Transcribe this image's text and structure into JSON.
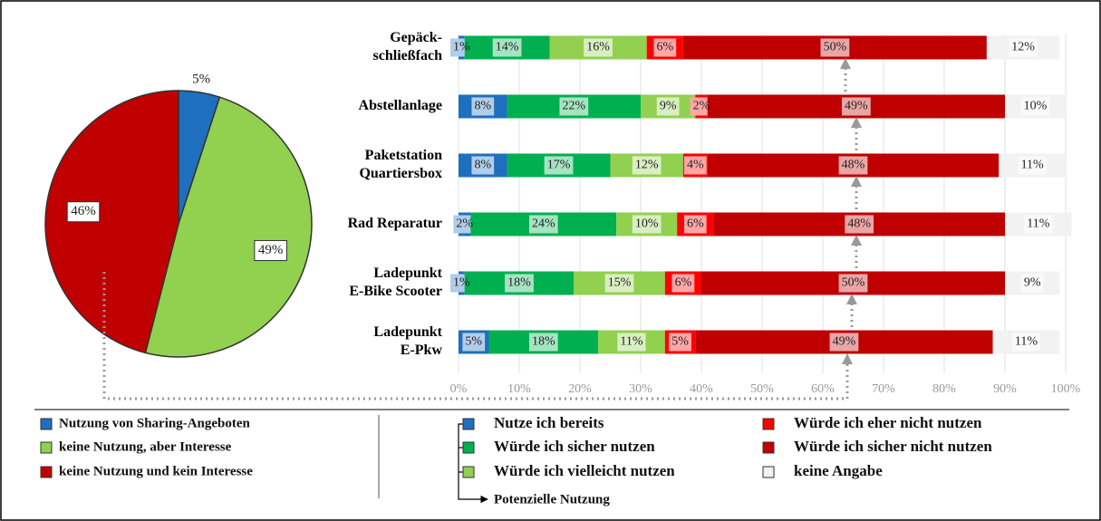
{
  "chart_data": [
    {
      "type": "pie",
      "categories": [
        "Nutzung von Sharing-Angeboten",
        "keine Nutzung, aber Interesse",
        "keine Nutzung und kein Interesse"
      ],
      "values": [
        5,
        49,
        46
      ],
      "value_labels": [
        "5%",
        "49%",
        "46%"
      ],
      "colors": [
        "#1f6fbf",
        "#92d050",
        "#c00000"
      ]
    },
    {
      "type": "stacked_barh",
      "categories": [
        [
          "Gepäck-",
          "schließfach"
        ],
        [
          "Abstellanlage"
        ],
        [
          "Paketstation",
          "Quartiersbox"
        ],
        [
          "Rad Reparatur"
        ],
        [
          "Ladepunkt",
          "E-Bike Scooter"
        ],
        [
          "Ladepunkt",
          "E-Pkw"
        ]
      ],
      "series": [
        {
          "name": "Nutze ich bereits",
          "color": "#1f6fbf",
          "values": [
            1,
            8,
            8,
            2,
            1,
            5
          ],
          "value_labels": [
            "1%",
            "8%",
            "8%",
            "2%",
            "1%",
            "5%"
          ]
        },
        {
          "name": "Würde ich sicher nutzen",
          "color": "#00b050",
          "values": [
            14,
            22,
            17,
            24,
            18,
            18
          ],
          "value_labels": [
            "14%",
            "22%",
            "17%",
            "24%",
            "18%",
            "18%"
          ]
        },
        {
          "name": "Würde ich vielleicht nutzen",
          "color": "#92d050",
          "values": [
            16,
            9,
            12,
            10,
            15,
            11
          ],
          "value_labels": [
            "16%",
            "9%",
            "12%",
            "10%",
            "15%",
            "11%"
          ]
        },
        {
          "name": "Würde ich eher nicht nutzen",
          "color": "#ff0000",
          "values": [
            6,
            2,
            4,
            6,
            6,
            5
          ],
          "value_labels": [
            "6%",
            "2%",
            "4%",
            "6%",
            "6%",
            "5%"
          ]
        },
        {
          "name": "Würde ich sicher nicht nutzen",
          "color": "#c00000",
          "values": [
            50,
            49,
            48,
            48,
            50,
            49
          ],
          "value_labels": [
            "50%",
            "49%",
            "48%",
            "48%",
            "50%",
            "49%"
          ]
        },
        {
          "name": "keine Angabe",
          "color": "#f2f2f2",
          "values": [
            12,
            10,
            11,
            11,
            9,
            11
          ],
          "value_labels": [
            "12%",
            "10%",
            "11%",
            "11%",
            "9%",
            "11%"
          ]
        }
      ],
      "xlim": [
        0,
        100
      ],
      "xticks": [
        {
          "value": 0,
          "label": "0%"
        },
        {
          "value": 10,
          "label": "10%"
        },
        {
          "value": 20,
          "label": "20%"
        },
        {
          "value": 30,
          "label": "30%"
        },
        {
          "value": 40,
          "label": "40%"
        },
        {
          "value": 50,
          "label": "50%"
        },
        {
          "value": 60,
          "label": "60%"
        },
        {
          "value": 70,
          "label": "70%"
        },
        {
          "value": 80,
          "label": "80%"
        },
        {
          "value": 90,
          "label": "90%"
        },
        {
          "value": 100,
          "label": "100%"
        }
      ],
      "grid": true,
      "annotation": "Potenzielle Nutzung"
    }
  ]
}
